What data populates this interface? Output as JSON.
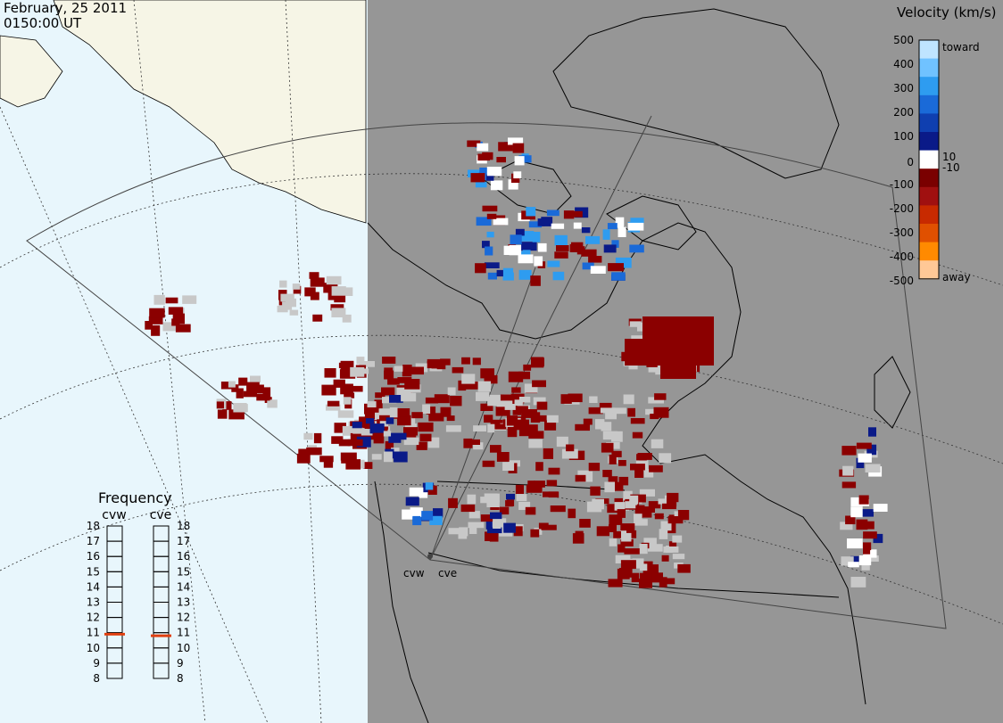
{
  "header": {
    "date": "February, 25 2011",
    "time": "0150:00 UT"
  },
  "colors": {
    "ocean": "#e8f6fc",
    "land_left": "#f6f5e6",
    "night_shade": "#969696",
    "ground_scatter": "#c8c8c8",
    "fov_line": "#555555"
  },
  "velocity_scale": {
    "title": "Velocity (km/s)",
    "ticks": [
      "500",
      "400",
      "300",
      "200",
      "100",
      "10",
      "0",
      "-10",
      "-100",
      "-200",
      "-300",
      "-400",
      "-500"
    ],
    "toward_label": "toward",
    "away_label": "away",
    "colors_top_to_bottom": [
      "#bfe4ff",
      "#70c2ff",
      "#2e9cf0",
      "#1a6ad8",
      "#0f3fb0",
      "#0a1a88",
      "#ffffff",
      "#7a0000",
      "#a01010",
      "#c82a00",
      "#e05000",
      "#ff8a00",
      "#ffc896"
    ]
  },
  "frequency_panel": {
    "title": "Frequency",
    "radars": [
      {
        "label": "cvw",
        "freq": 10.9
      },
      {
        "label": "cve",
        "freq": 10.8
      }
    ],
    "ticks": [
      "18",
      "17",
      "16",
      "15",
      "14",
      "13",
      "12",
      "11",
      "10",
      "9",
      "8"
    ],
    "marker_color": "#e04010"
  },
  "radars": [
    {
      "label": "cvw"
    },
    {
      "label": "cve"
    }
  ]
}
